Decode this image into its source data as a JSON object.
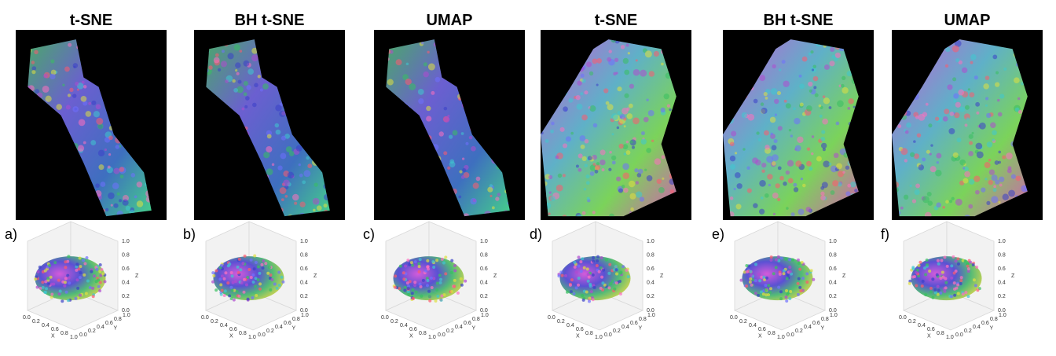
{
  "panels": [
    {
      "title": "t-SNE",
      "label": "a)"
    },
    {
      "title": "BH t-SNE",
      "label": "b)"
    },
    {
      "title": "UMAP",
      "label": "c)"
    },
    {
      "title": "t-SNE",
      "label": "d)"
    },
    {
      "title": "BH t-SNE",
      "label": "e)"
    },
    {
      "title": "UMAP",
      "label": "f)"
    }
  ],
  "axes": {
    "x_label": "X",
    "y_label": "Y",
    "z_label": "Z",
    "x_ticks": [
      "0.0",
      "0.2",
      "0.4",
      "0.6",
      "0.8",
      "1.0"
    ],
    "y_ticks": [
      "0.0",
      "0.2",
      "0.4",
      "0.6",
      "0.8",
      "1.0"
    ],
    "z_ticks": [
      "0.0",
      "0.2",
      "0.4",
      "0.6",
      "0.8",
      "1.0"
    ]
  }
}
